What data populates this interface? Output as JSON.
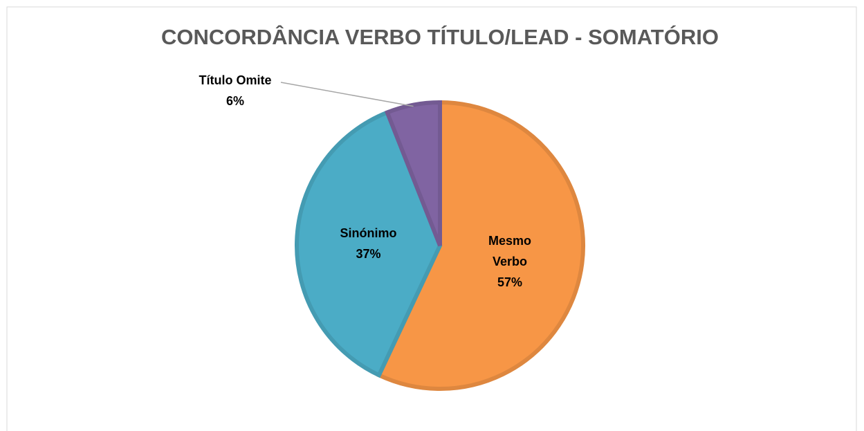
{
  "chart_data": {
    "type": "pie",
    "title": "CONCORDÂNCIA VERBO TÍTULO/LEAD - SOMATÓRIO",
    "categories": [
      "Mesmo Verbo",
      "Sinónimo",
      "Título Omite"
    ],
    "values": [
      57,
      37,
      6
    ],
    "value_labels": [
      "57%",
      "37%",
      "6%"
    ],
    "colors": [
      "#f79646",
      "#4bacc6",
      "#8064a2"
    ]
  }
}
